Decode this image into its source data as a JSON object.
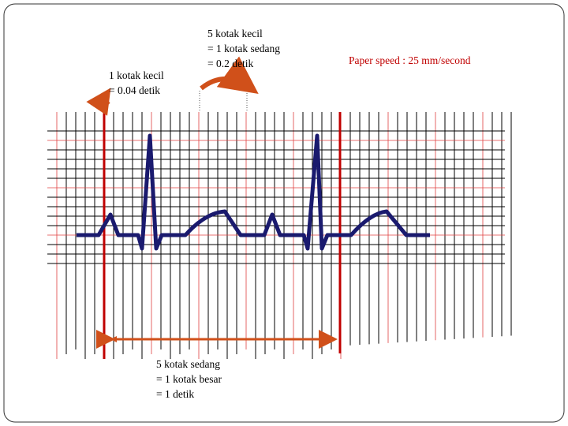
{
  "small_box_label": [
    "5 kotak kecil",
    "= 1 kotak sedang",
    "= 0.2 detik"
  ],
  "tiny_box_label": [
    "1 kotak kecil",
    "= 0.04 detik"
  ],
  "paper_speed": "Paper speed : 25 mm/second",
  "big_box_label": [
    "5 kotak sedang",
    "= 1 kotak besar",
    "= 1 detik"
  ]
}
